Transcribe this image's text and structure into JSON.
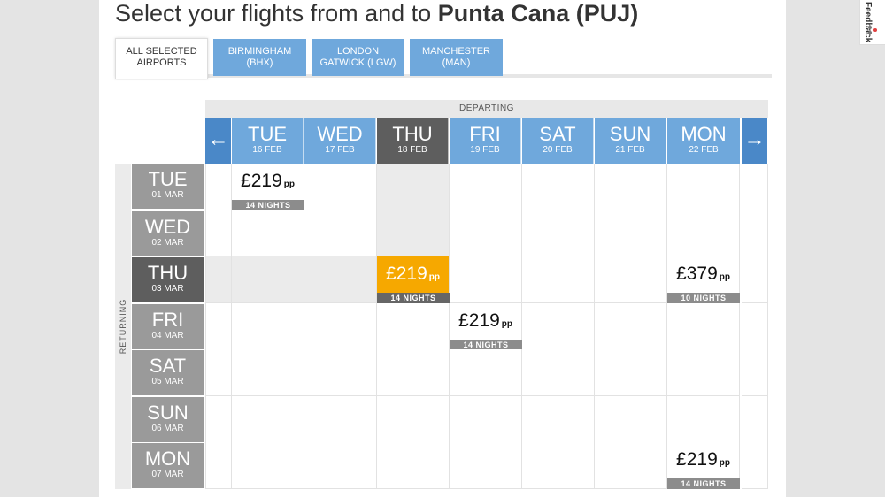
{
  "title": {
    "prefix": "Select your flights from and to",
    "destination": "Punta Cana (PUJ)"
  },
  "tabs": [
    {
      "line1": "ALL SELECTED",
      "line2": "AIRPORTS",
      "active": true
    },
    {
      "line1": "BIRMINGHAM",
      "line2": "(BHX)",
      "active": false
    },
    {
      "line1": "LONDON",
      "line2": "GATWICK (LGW)",
      "active": false
    },
    {
      "line1": "MANCHESTER",
      "line2": "(MAN)",
      "active": false
    }
  ],
  "departing_label": "DEPARTING",
  "returning_label": "RETURNING",
  "nav": {
    "prev": "←",
    "next": "→"
  },
  "departing": [
    {
      "day": "TUE",
      "date": "16 FEB"
    },
    {
      "day": "WED",
      "date": "17 FEB"
    },
    {
      "day": "THU",
      "date": "18 FEB"
    },
    {
      "day": "FRI",
      "date": "19 FEB"
    },
    {
      "day": "SAT",
      "date": "20 FEB"
    },
    {
      "day": "SUN",
      "date": "21 FEB"
    },
    {
      "day": "MON",
      "date": "22 FEB"
    }
  ],
  "returning": [
    {
      "day": "TUE",
      "date": "01 MAR"
    },
    {
      "day": "WED",
      "date": "02 MAR"
    },
    {
      "day": "THU",
      "date": "03 MAR"
    },
    {
      "day": "FRI",
      "date": "04 MAR"
    },
    {
      "day": "SAT",
      "date": "05 MAR"
    },
    {
      "day": "SUN",
      "date": "06 MAR"
    },
    {
      "day": "MON",
      "date": "07 MAR"
    }
  ],
  "selected": {
    "departing": 2,
    "returning": 2
  },
  "fares": [
    {
      "row": 0,
      "col": 0,
      "price": "£219",
      "unit": "pp",
      "nights": "14 NIGHTS"
    },
    {
      "row": 2,
      "col": 2,
      "price": "£219",
      "unit": "pp",
      "nights": "14 NIGHTS"
    },
    {
      "row": 2,
      "col": 6,
      "price": "£379",
      "unit": "pp",
      "nights": "10 NIGHTS"
    },
    {
      "row": 3,
      "col": 3,
      "price": "£219",
      "unit": "pp",
      "nights": "14 NIGHTS"
    },
    {
      "row": 6,
      "col": 6,
      "price": "£219",
      "unit": "pp",
      "nights": "14 NIGHTS"
    }
  ],
  "feedback": {
    "label": "Feedback",
    "icon": "feedback-dots-icon"
  },
  "colors": {
    "blue": "#6fa8dc",
    "dark": "#5e5e5e",
    "selected": "#f6a800"
  }
}
